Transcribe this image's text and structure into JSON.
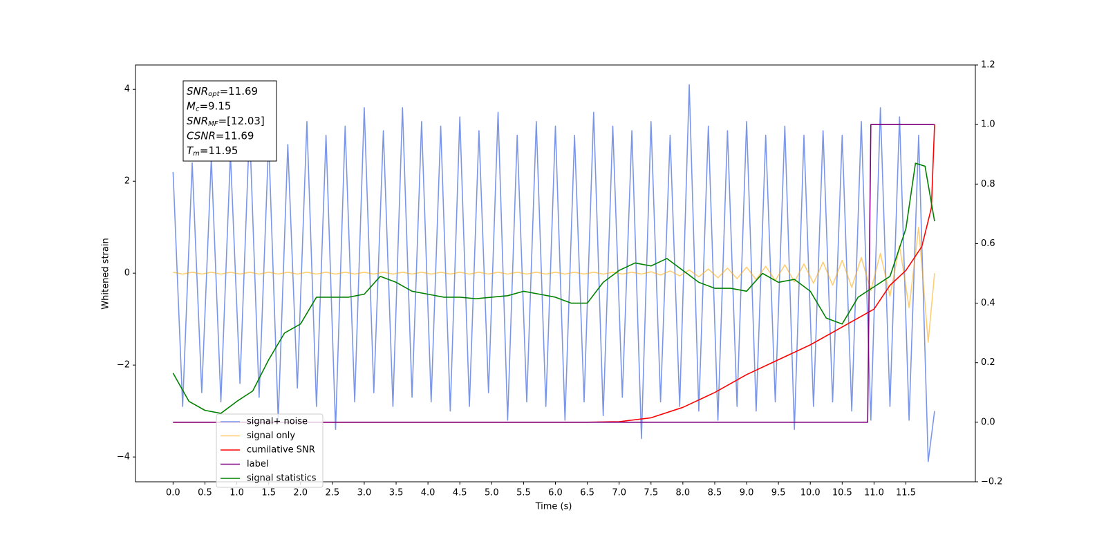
{
  "chart_data": {
    "type": "line",
    "xlabel": "Time (s)",
    "ylabel": "Whitened strain",
    "xlim": [
      -0.59,
      12.59
    ],
    "xticks": [
      {
        "value": 0,
        "label": "0.0"
      },
      0.5,
      {
        "value": 1,
        "label": "1.0"
      },
      1.5,
      {
        "value": 2,
        "label": "2.0"
      },
      2.5,
      {
        "value": 3,
        "label": "3.0"
      },
      3.5,
      {
        "value": 4,
        "label": "4.0"
      },
      4.5,
      {
        "value": 5,
        "label": "5.0"
      },
      5.5,
      {
        "value": 6,
        "label": "6.0"
      },
      6.5,
      {
        "value": 7,
        "label": "7.0"
      },
      7.5,
      {
        "value": 8,
        "label": "8.0"
      },
      8.5,
      {
        "value": 9,
        "label": "9.0"
      },
      9.5,
      {
        "value": 10,
        "label": "10.0"
      },
      10.5,
      {
        "value": 11,
        "label": "11.0"
      },
      11.5
    ],
    "ylim": [
      -4.54,
      4.53
    ],
    "yticks": [
      {
        "value": -4,
        "label": "−4"
      },
      {
        "value": -2,
        "label": "−2"
      },
      0,
      2,
      4
    ],
    "y2lim": [
      -0.2,
      1.2
    ],
    "y2ticks": [
      {
        "value": -0.2,
        "label": "−0.2"
      },
      {
        "value": 0,
        "label": "0.0"
      },
      0.2,
      0.4,
      0.6,
      0.8,
      {
        "value": 1,
        "label": "1.0"
      },
      1.2
    ],
    "legend": "lower left",
    "annotations": [
      {
        "symbol": "SNR",
        "subscript": "opt",
        "text": "=11.69"
      },
      {
        "symbol": "M",
        "subscript": "c",
        "text": "=9.15"
      },
      {
        "symbol": "SNR",
        "subscript": "MF",
        "text": "=[12.03]"
      },
      {
        "symbol": "CSNR",
        "subscript": "",
        "text": "=11.69"
      },
      {
        "symbol": "T",
        "subscript": "m",
        "text": "=11.95"
      }
    ],
    "series": [
      {
        "name": "signal+ noise",
        "color": "#7b96e8",
        "opacity": 1,
        "x": [
          0,
          0.15,
          0.3,
          0.45,
          0.6,
          0.75,
          0.9,
          1.05,
          1.2,
          1.35,
          1.5,
          1.65,
          1.8,
          1.95,
          2.1,
          2.25,
          2.4,
          2.55,
          2.7,
          2.85,
          3,
          3.15,
          3.3,
          3.45,
          3.6,
          3.75,
          3.9,
          4.05,
          4.2,
          4.35,
          4.5,
          4.65,
          4.8,
          4.95,
          5.1,
          5.25,
          5.4,
          5.55,
          5.7,
          5.85,
          6,
          6.15,
          6.3,
          6.45,
          6.6,
          6.75,
          6.9,
          7.05,
          7.2,
          7.35,
          7.5,
          7.65,
          7.8,
          7.95,
          8.1,
          8.25,
          8.4,
          8.55,
          8.7,
          8.85,
          9,
          9.15,
          9.3,
          9.45,
          9.6,
          9.75,
          9.9,
          10.05,
          10.2,
          10.35,
          10.5,
          10.65,
          10.8,
          10.95,
          11.1,
          11.25,
          11.4,
          11.55,
          11.7,
          11.85,
          11.95
        ],
        "values": [
          2.2,
          -2.9,
          2.4,
          -2.6,
          2.5,
          -2.8,
          2.6,
          -2.4,
          3.2,
          -2.7,
          2.9,
          -3.2,
          2.8,
          -2.5,
          3.3,
          -2.9,
          3.0,
          -3.4,
          3.2,
          -2.8,
          3.6,
          -2.6,
          3.1,
          -2.9,
          3.6,
          -2.7,
          3.3,
          -2.8,
          3.2,
          -3.0,
          3.4,
          -2.9,
          3.1,
          -2.6,
          3.5,
          -3.2,
          3.0,
          -2.8,
          3.3,
          -2.9,
          3.2,
          -3.2,
          3.0,
          -2.8,
          3.5,
          -3.1,
          3.2,
          -2.7,
          3.1,
          -3.6,
          3.3,
          -2.8,
          3.0,
          -2.9,
          4.1,
          -3.0,
          3.2,
          -3.2,
          3.1,
          -2.9,
          3.3,
          -3.0,
          3.0,
          -2.8,
          3.2,
          -3.4,
          3.0,
          -2.9,
          3.1,
          -2.8,
          3.0,
          -3.0,
          3.3,
          -3.2,
          3.6,
          -2.9,
          3.4,
          -3.2,
          3.0,
          -4.1,
          -3.0
        ]
      },
      {
        "name": "signal only",
        "color": "#ffa500",
        "opacity": 0.55,
        "x": [
          0,
          0.15,
          0.3,
          0.45,
          0.6,
          0.75,
          0.9,
          1.05,
          1.2,
          1.35,
          1.5,
          1.65,
          1.8,
          1.95,
          2.1,
          2.25,
          2.4,
          2.55,
          2.7,
          2.85,
          3,
          3.15,
          3.3,
          3.45,
          3.6,
          3.75,
          3.9,
          4.05,
          4.2,
          4.35,
          4.5,
          4.65,
          4.8,
          4.95,
          5.1,
          5.25,
          5.4,
          5.55,
          5.7,
          5.85,
          6,
          6.15,
          6.3,
          6.45,
          6.6,
          6.75,
          6.9,
          7.05,
          7.2,
          7.35,
          7.5,
          7.65,
          7.8,
          7.95,
          8.1,
          8.25,
          8.4,
          8.55,
          8.7,
          8.85,
          9,
          9.15,
          9.3,
          9.45,
          9.6,
          9.75,
          9.9,
          10.05,
          10.2,
          10.35,
          10.5,
          10.65,
          10.8,
          10.95,
          11.1,
          11.25,
          11.4,
          11.55,
          11.7,
          11.85,
          11.95
        ],
        "values": [
          0.02,
          -0.02,
          0.02,
          -0.02,
          0.02,
          -0.02,
          0.02,
          -0.02,
          0.02,
          -0.02,
          0.02,
          -0.02,
          0.02,
          -0.02,
          0.02,
          -0.02,
          0.02,
          -0.02,
          0.02,
          -0.02,
          0.02,
          -0.02,
          0.02,
          -0.02,
          0.02,
          -0.02,
          0.02,
          -0.02,
          0.02,
          -0.02,
          0.02,
          -0.02,
          0.02,
          -0.02,
          0.02,
          -0.02,
          0.02,
          -0.02,
          0.02,
          -0.02,
          0.02,
          -0.02,
          0.02,
          -0.02,
          0.02,
          -0.02,
          0.02,
          -0.02,
          0.02,
          -0.02,
          0.03,
          -0.04,
          0.05,
          -0.06,
          0.07,
          -0.08,
          0.09,
          -0.1,
          0.11,
          -0.12,
          0.13,
          -0.14,
          0.15,
          -0.16,
          0.18,
          -0.19,
          0.2,
          -0.22,
          0.24,
          -0.26,
          0.28,
          -0.31,
          0.34,
          -0.38,
          0.43,
          -0.5,
          0.6,
          -0.75,
          1.0,
          -1.5,
          0
        ]
      },
      {
        "name": "cumilative SNR",
        "color": "#ff0000",
        "opacity": 1,
        "axis": "y2",
        "x": [
          0,
          6.5,
          7,
          7.5,
          8,
          8.5,
          9,
          9.5,
          10,
          10.5,
          11,
          11.25,
          11.5,
          11.75,
          11.9,
          11.95
        ],
        "values": [
          0,
          0,
          0.002,
          0.015,
          0.05,
          0.1,
          0.16,
          0.21,
          0.26,
          0.32,
          0.38,
          0.46,
          0.51,
          0.59,
          0.72,
          1.0
        ]
      },
      {
        "name": "label",
        "color": "#800080",
        "opacity": 1,
        "axis": "y2",
        "x": [
          0,
          10.9,
          10.95,
          11.95
        ],
        "values": [
          0,
          0,
          1,
          1
        ]
      },
      {
        "name": "signal statistics",
        "color": "#008000",
        "opacity": 1,
        "axis": "y2",
        "x": [
          0,
          0.25,
          0.5,
          0.75,
          1,
          1.25,
          1.5,
          1.75,
          2,
          2.25,
          2.5,
          2.75,
          3,
          3.25,
          3.5,
          3.75,
          4,
          4.25,
          4.5,
          4.75,
          5,
          5.25,
          5.5,
          5.75,
          6,
          6.25,
          6.5,
          6.75,
          7,
          7.25,
          7.5,
          7.75,
          8,
          8.25,
          8.5,
          8.75,
          9,
          9.25,
          9.5,
          9.75,
          10,
          10.25,
          10.5,
          10.75,
          11,
          11.25,
          11.5,
          11.65,
          11.8,
          11.95
        ],
        "values": [
          0.165,
          0.07,
          0.04,
          0.03,
          0.07,
          0.105,
          0.21,
          0.3,
          0.33,
          0.42,
          0.42,
          0.42,
          0.43,
          0.49,
          0.47,
          0.44,
          0.43,
          0.42,
          0.42,
          0.415,
          0.42,
          0.425,
          0.44,
          0.43,
          0.42,
          0.4,
          0.4,
          0.47,
          0.51,
          0.535,
          0.525,
          0.55,
          0.51,
          0.47,
          0.45,
          0.45,
          0.44,
          0.5,
          0.47,
          0.48,
          0.44,
          0.35,
          0.33,
          0.42,
          0.455,
          0.49,
          0.65,
          0.87,
          0.86,
          0.675
        ]
      }
    ]
  }
}
